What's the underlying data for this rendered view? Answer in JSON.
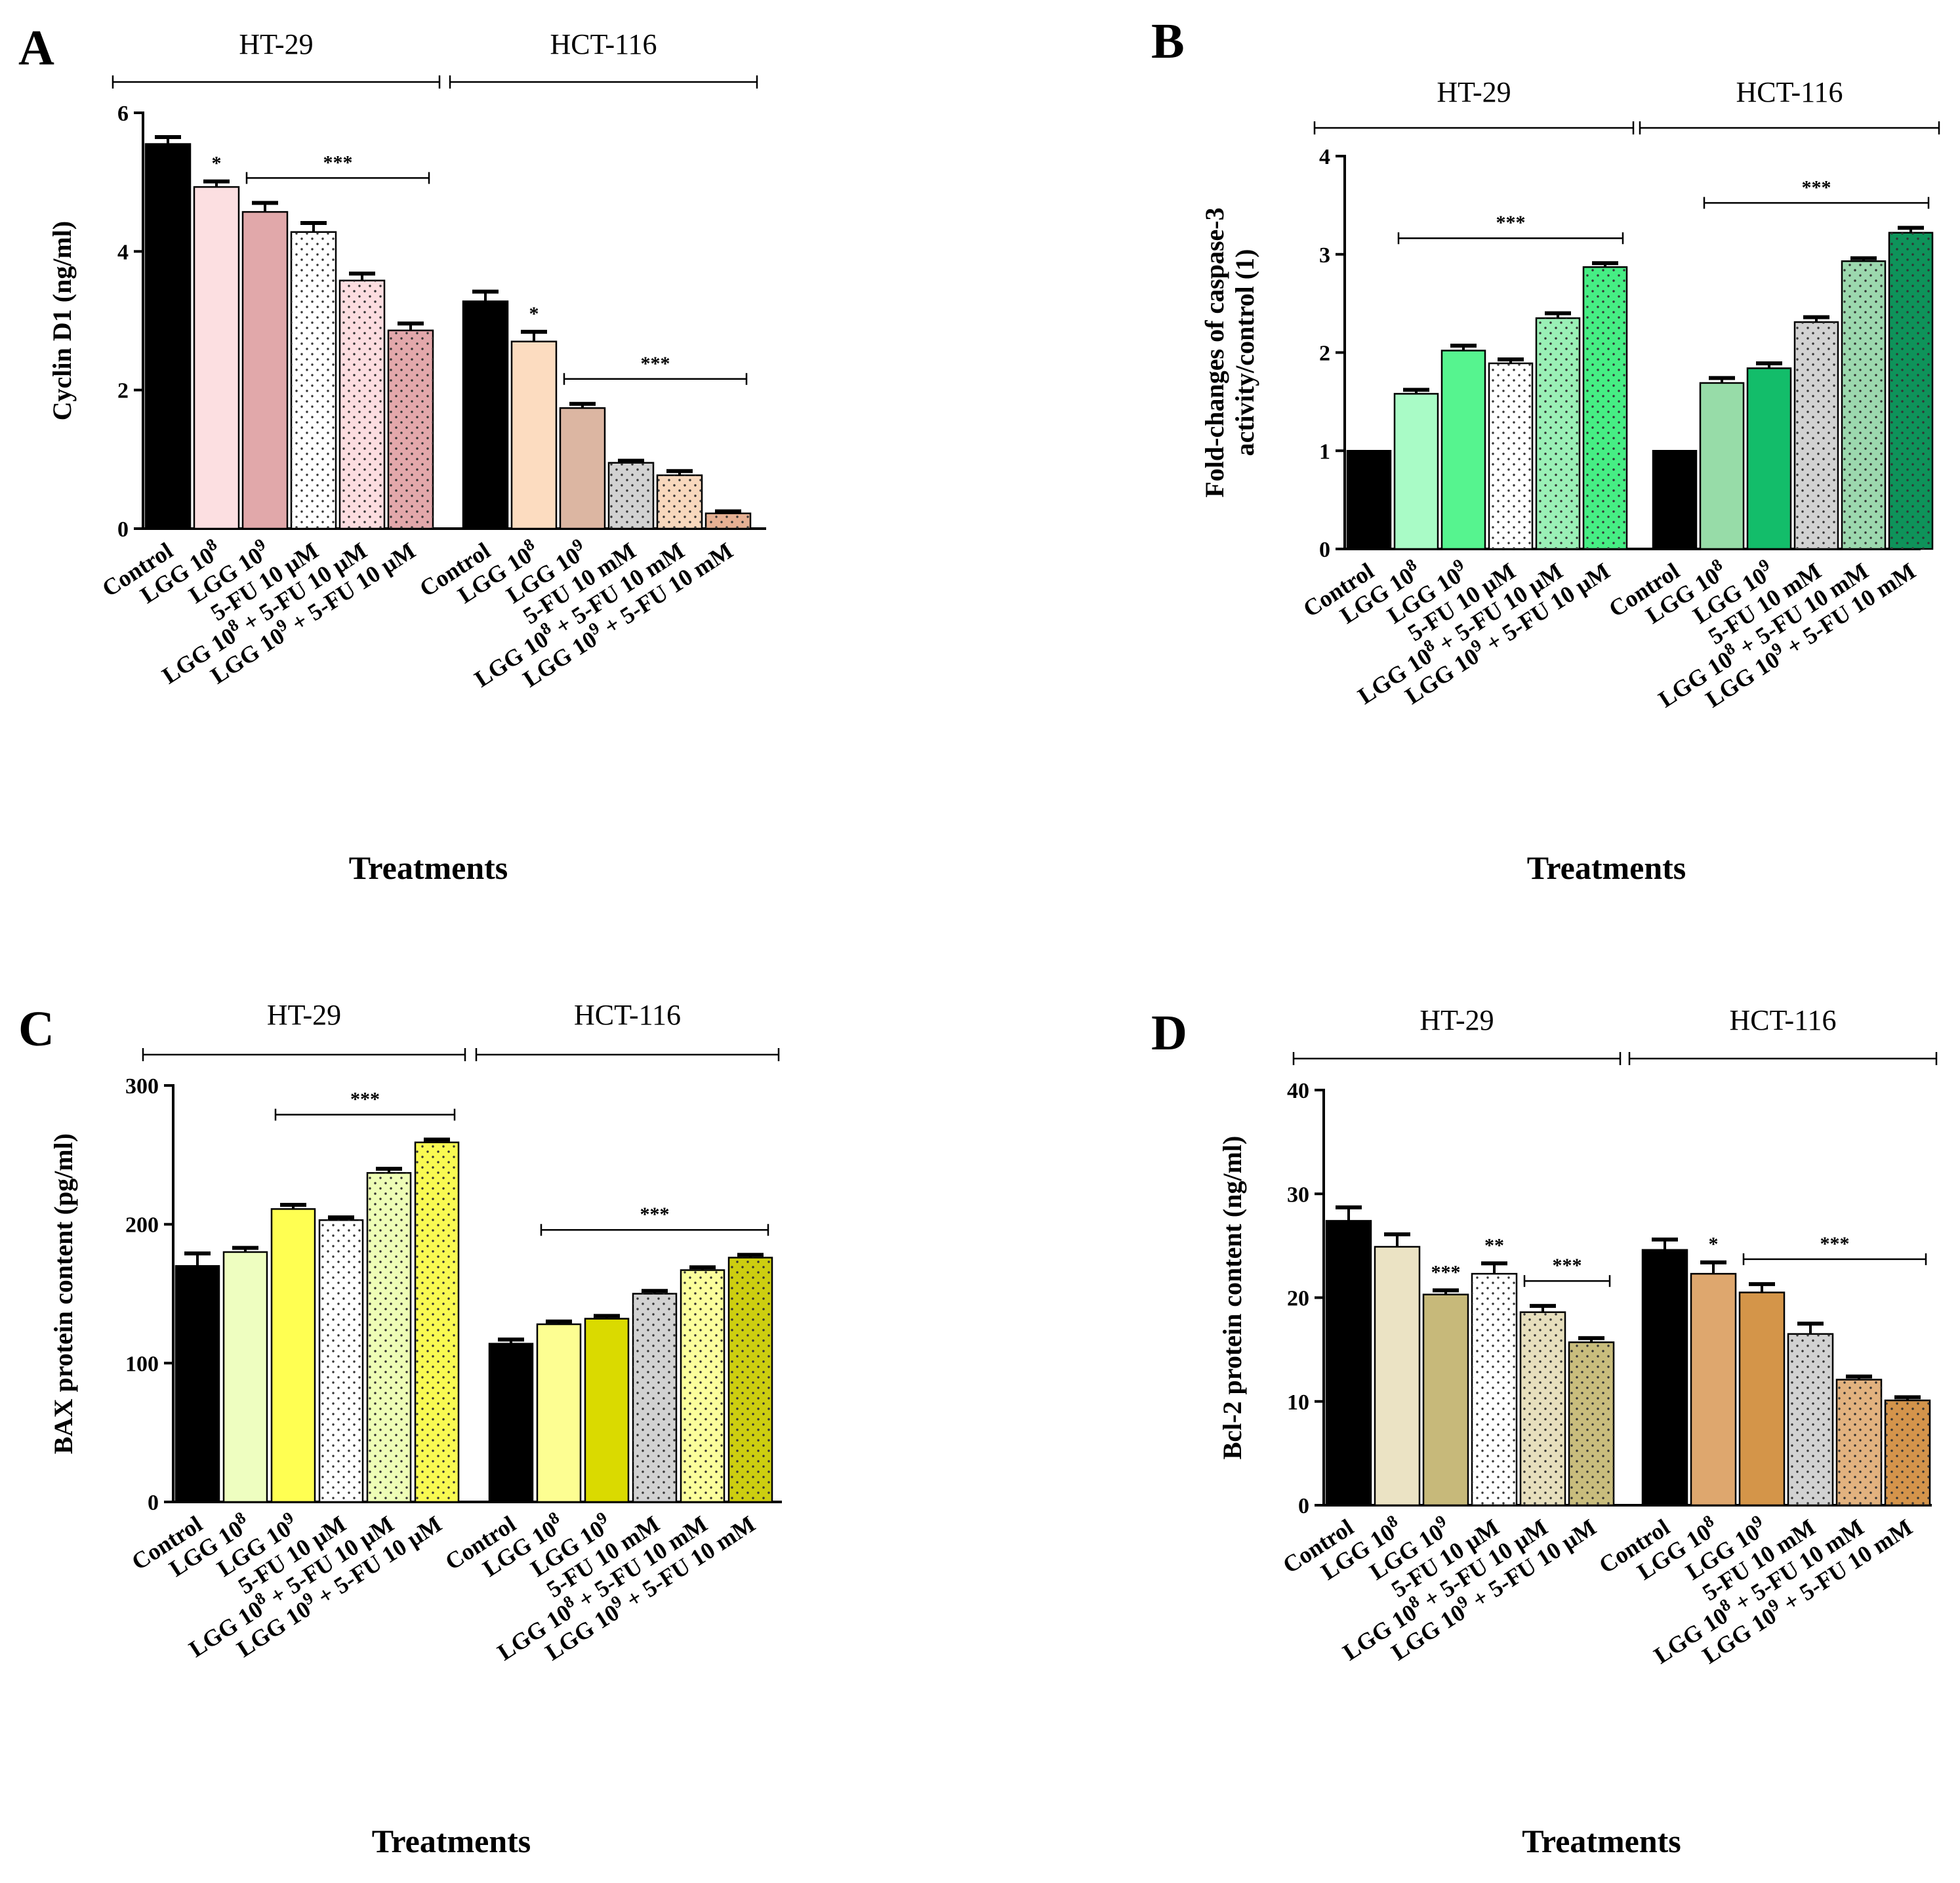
{
  "xlabel": "Treatments",
  "panels": [
    {
      "letter": "A",
      "ylabel": "Cyclin D1 (ng/ml)",
      "ylabel_lines": [
        "Cyclin D1 (ng/ml)"
      ],
      "groups": [
        "HT-29",
        "HCT-116"
      ]
    },
    {
      "letter": "B",
      "ylabel": "Fold-changes of caspase-3 activity/control (1)",
      "ylabel_lines": [
        "Fold-changes of caspase-3",
        "activity/control (1)"
      ],
      "groups": [
        "HT-29",
        "HCT-116"
      ]
    },
    {
      "letter": "C",
      "ylabel": "BAX protein content (pg/ml)",
      "ylabel_lines": [
        "BAX protein content (pg/ml)"
      ],
      "groups": [
        "HT-29",
        "HCT-116"
      ]
    },
    {
      "letter": "D",
      "ylabel": "Bcl-2 protein content (ng/ml)",
      "ylabel_lines": [
        "Bcl-2 protein content (ng/ml)"
      ],
      "groups": [
        "HT-29",
        "HCT-116"
      ]
    }
  ],
  "chart_data": [
    {
      "type": "bar",
      "title": "A",
      "xlabel": "Treatments",
      "ylabel": "Cyclin D1 (ng/ml)",
      "ylim": [
        0,
        6
      ],
      "yticks": [
        0,
        2,
        4,
        6
      ],
      "groups": [
        "HT-29",
        "HCT-116"
      ],
      "categories": [
        "Control",
        "LGG 10^8",
        "LGG 10^9",
        "5-FU 10 µM",
        "LGG 10^8 + 5-FU 10 µM",
        "LGG 10^9 + 5-FU 10 µM",
        "Control",
        "LGG 10^8",
        "LGG 10^9",
        "5-FU 10 mM",
        "LGG 10^8 + 5-FU 10 mM",
        "LGG 10^9 + 5-FU 10 mM"
      ],
      "values": [
        5.55,
        4.93,
        4.57,
        4.28,
        3.58,
        2.86,
        3.28,
        2.7,
        1.74,
        0.95,
        0.77,
        0.22
      ],
      "errors": [
        0.1,
        0.08,
        0.13,
        0.13,
        0.1,
        0.1,
        0.14,
        0.14,
        0.06,
        0.03,
        0.06,
        0.03
      ],
      "colors": [
        "#000000",
        "#fcdfe1",
        "#e1a8aa",
        "#ffffff",
        "#fcdde0",
        "#e3a8ab",
        "#000000",
        "#fcdcc0",
        "#dcb6a2",
        "#d2d2d2",
        "#f8d8bd",
        "#e6b093"
      ],
      "dotted": [
        false,
        false,
        false,
        true,
        true,
        true,
        false,
        false,
        false,
        true,
        true,
        true
      ],
      "annotations": [
        {
          "text": "*",
          "bar": 1
        },
        {
          "text": "***",
          "from": 2,
          "to": 5
        },
        {
          "text": "*",
          "bar": 7
        },
        {
          "text": "***",
          "from": 8,
          "to": 11
        }
      ]
    },
    {
      "type": "bar",
      "title": "B",
      "xlabel": "Treatments",
      "ylabel": "Fold-changes of caspase-3 activity/control (1)",
      "ylim": [
        0,
        4
      ],
      "yticks": [
        0,
        1,
        2,
        3,
        4
      ],
      "groups": [
        "HT-29",
        "HCT-116"
      ],
      "categories": [
        "Control",
        "LGG 10^8",
        "LGG 10^9",
        "5-FU 10 µM",
        "LGG 10^8 + 5-FU 10 µM",
        "LGG 10^9 + 5-FU 10 µM",
        "Control",
        "LGG 10^8",
        "LGG 10^9",
        "5-FU 10 mM",
        "LGG 10^8 + 5-FU 10 mM",
        "LGG 10^9 + 5-FU 10 mM"
      ],
      "values": [
        1.0,
        1.58,
        2.02,
        1.89,
        2.35,
        2.87,
        1.0,
        1.69,
        1.84,
        2.31,
        2.93,
        3.22
      ],
      "errors": [
        0,
        0.04,
        0.05,
        0.04,
        0.05,
        0.04,
        0,
        0.05,
        0.05,
        0.05,
        0.03,
        0.05
      ],
      "colors": [
        "#000000",
        "#a9fbc6",
        "#56f48f",
        "#ffffff",
        "#9af0b6",
        "#46ee84",
        "#000000",
        "#97dca8",
        "#13bd6a",
        "#d2d2d2",
        "#9cd8ae",
        "#0e935a"
      ],
      "dotted": [
        false,
        false,
        false,
        true,
        true,
        true,
        false,
        false,
        false,
        true,
        true,
        true
      ],
      "annotations": [
        {
          "text": "***",
          "from": 1,
          "to": 5
        },
        {
          "text": "***",
          "from": 7,
          "to": 11
        }
      ]
    },
    {
      "type": "bar",
      "title": "C",
      "xlabel": "Treatments",
      "ylabel": "BAX protein content (pg/ml)",
      "ylim": [
        0,
        300
      ],
      "yticks": [
        0,
        100,
        200,
        300
      ],
      "groups": [
        "HT-29",
        "HCT-116"
      ],
      "categories": [
        "Control",
        "LGG 10^8",
        "LGG 10^9",
        "5-FU 10 µM",
        "LGG 10^8 + 5-FU 10 µM",
        "LGG 10^9 + 5-FU 10 µM",
        "Control",
        "LGG 10^8",
        "LGG 10^9",
        "5-FU 10 mM",
        "LGG 10^8 + 5-FU 10 mM",
        "LGG 10^9 + 5-FU 10 mM"
      ],
      "values": [
        170,
        180,
        211,
        203,
        237,
        259,
        114,
        128,
        132,
        150,
        167,
        176
      ],
      "errors": [
        9,
        3,
        3,
        2,
        3,
        2,
        3,
        2,
        2,
        2,
        2,
        2
      ],
      "colors": [
        "#000000",
        "#eefec0",
        "#ffff52",
        "#ffffff",
        "#eefdb6",
        "#f9fa52",
        "#000000",
        "#fdfe92",
        "#dada00",
        "#d2d2d2",
        "#fbfe9c",
        "#cdce10"
      ],
      "dotted": [
        false,
        false,
        false,
        true,
        true,
        true,
        false,
        false,
        false,
        true,
        true,
        true
      ],
      "annotations": [
        {
          "text": "***",
          "from": 2,
          "to": 5
        },
        {
          "text": "***",
          "from": 7,
          "to": 11
        }
      ]
    },
    {
      "type": "bar",
      "title": "D",
      "xlabel": "Treatments",
      "ylabel": "Bcl-2 protein content (ng/ml)",
      "ylim": [
        0,
        40
      ],
      "yticks": [
        0,
        10,
        20,
        30,
        40
      ],
      "groups": [
        "HT-29",
        "HCT-116"
      ],
      "categories": [
        "Control",
        "LGG 10^8",
        "LGG 10^9",
        "5-FU 10 µM",
        "LGG 10^8 + 5-FU 10 µM",
        "LGG 10^9 + 5-FU 10 µM",
        "Control",
        "LGG 10^8",
        "LGG 10^9",
        "5-FU 10 mM",
        "LGG 10^8 + 5-FU 10 mM",
        "LGG 10^9 + 5-FU 10 mM"
      ],
      "values": [
        27.4,
        24.9,
        20.3,
        22.3,
        18.6,
        15.7,
        24.6,
        22.3,
        20.5,
        16.5,
        12.1,
        10.1
      ],
      "errors": [
        1.3,
        1.2,
        0.4,
        1.0,
        0.6,
        0.4,
        1.0,
        1.1,
        0.8,
        1.0,
        0.3,
        0.3
      ],
      "colors": [
        "#000000",
        "#ebe3c4",
        "#c7b97a",
        "#ffffff",
        "#e7dfbd",
        "#c9bd7d",
        "#000000",
        "#dea76e",
        "#d49549",
        "#d2d2d2",
        "#e2b27f",
        "#d4944b"
      ],
      "dotted": [
        false,
        false,
        false,
        true,
        true,
        true,
        false,
        false,
        false,
        true,
        true,
        true
      ],
      "annotations": [
        {
          "text": "***",
          "bar": 2
        },
        {
          "text": "**",
          "bar": 3
        },
        {
          "text": "***",
          "from": 4,
          "to": 5
        },
        {
          "text": "*",
          "bar": 7
        },
        {
          "text": "***",
          "from": 8,
          "to": 11
        }
      ]
    }
  ]
}
